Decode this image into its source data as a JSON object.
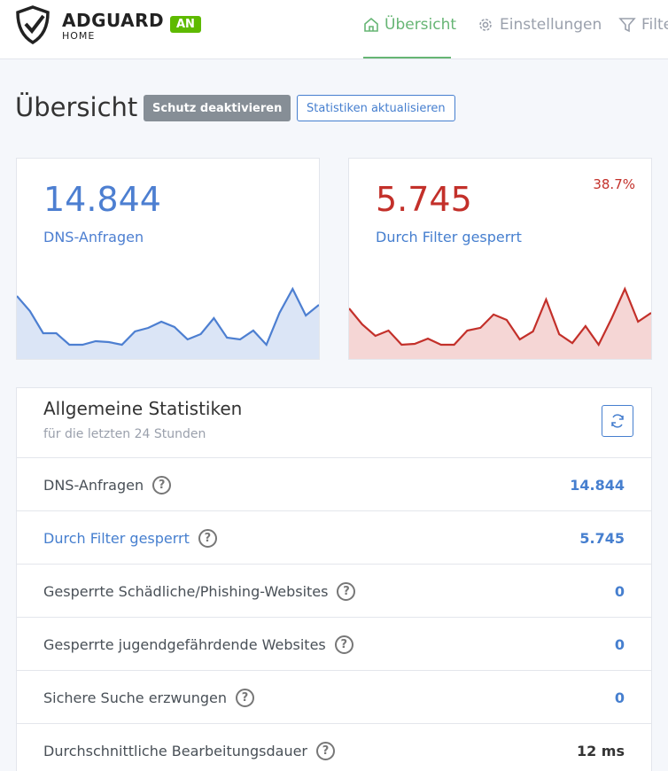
{
  "header": {
    "logo_name": "ADGUARD",
    "logo_sub": "HOME",
    "status": "AN",
    "nav": [
      "Übersicht",
      "Einstellungen",
      "Filter"
    ]
  },
  "page": {
    "title": "Übersicht",
    "buttons": [
      "Schutz deaktivieren",
      "Statistiken aktualisieren"
    ]
  },
  "cards": [
    {
      "value": "14.844",
      "label": "DNS-Anfragen",
      "color": "#4d7fd1",
      "fill": "#dbe5f6",
      "sparkline": [
        1224,
        935,
        510,
        510,
        289,
        289,
        357,
        340,
        289,
        544,
        612,
        731,
        629,
        391,
        493,
        799,
        425,
        391,
        561,
        289,
        901,
        1360,
        850,
        1054
      ]
    },
    {
      "value": "5.745",
      "label": "Durch Filter gesperrt",
      "percent": "38.7%",
      "color": "#c3302a",
      "fill": "#f5d6d5",
      "sparkline": [
        383,
        264,
        178,
        218,
        112,
        119,
        158,
        112,
        112,
        218,
        238,
        337,
        297,
        152,
        211,
        449,
        191,
        125,
        251,
        112,
        310,
        528,
        284,
        350
      ]
    }
  ],
  "stats": {
    "title": "Allgemeine Statistiken",
    "subtitle": "für die letzten 24 Stunden",
    "rows": [
      {
        "label": "DNS-Anfragen",
        "value": "14.844"
      },
      {
        "label": "Durch Filter gesperrt",
        "value": "5.745"
      },
      {
        "label": "Gesperrte Schädliche/Phishing-Websites",
        "value": "0"
      },
      {
        "label": "Gesperrte jugendgefährdende Websites",
        "value": "0"
      },
      {
        "label": "Sichere Suche erzwungen",
        "value": "0"
      },
      {
        "label": "Durchschnittliche Bearbeitungsdauer",
        "value": "12 ms"
      }
    ]
  }
}
